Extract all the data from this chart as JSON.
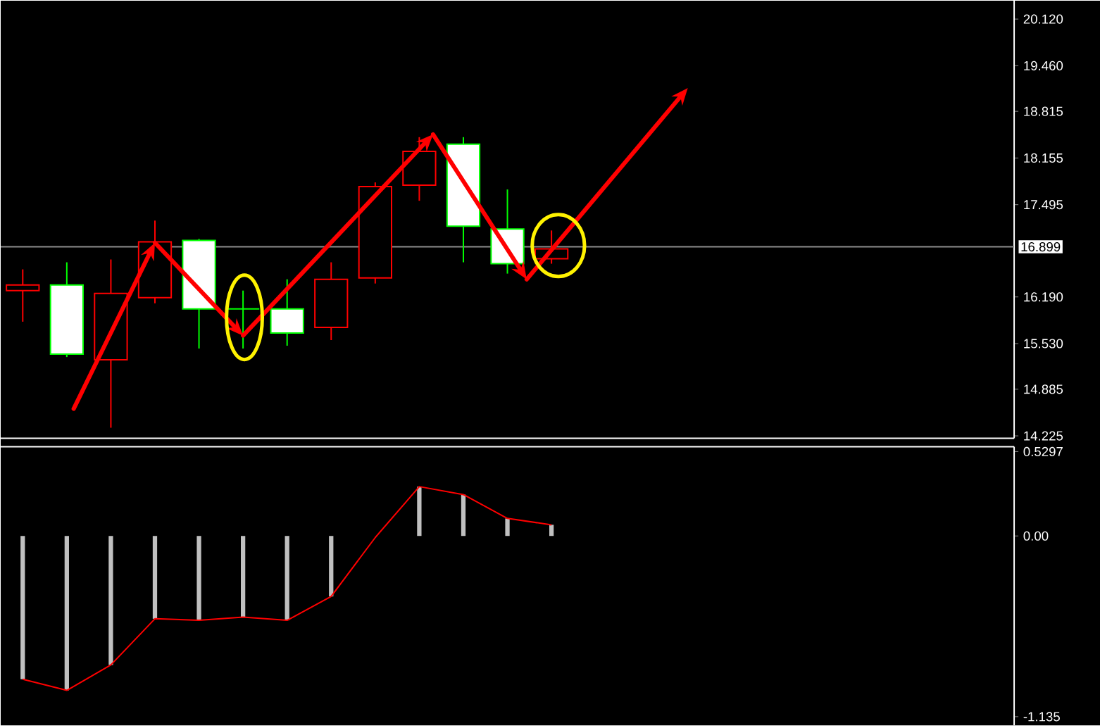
{
  "chart_data": [
    {
      "type": "candlestick",
      "categories": [
        null,
        null,
        null,
        null,
        null,
        null,
        null,
        null,
        null,
        null,
        null,
        null,
        null,
        null,
        null,
        null,
        null,
        null,
        null,
        null,
        null,
        null,
        null
      ],
      "ohlc": [
        [
          16.28,
          16.58,
          15.84,
          16.36
        ],
        [
          16.36,
          16.68,
          15.34,
          15.38
        ],
        [
          15.3,
          16.72,
          14.34,
          16.24
        ],
        [
          16.18,
          17.27,
          16.1,
          16.97
        ],
        [
          16.99,
          17.01,
          15.46,
          16.02
        ],
        [
          16.02,
          16.28,
          15.46,
          16.02
        ],
        [
          16.02,
          16.44,
          15.5,
          15.68
        ],
        [
          15.76,
          16.68,
          15.58,
          16.44
        ],
        [
          16.46,
          17.81,
          16.38,
          17.75
        ],
        [
          17.77,
          18.45,
          17.55,
          18.25
        ],
        [
          18.35,
          18.45,
          16.68,
          17.19
        ],
        [
          17.15,
          17.71,
          16.52,
          16.66
        ],
        [
          16.73,
          17.13,
          16.66,
          16.87
        ],
        null,
        null,
        null,
        null,
        null,
        null,
        null,
        null,
        null,
        null
      ],
      "colors": [
        "#ff0000",
        "#00ff00",
        "#ff0000",
        "#ff0000",
        "#00ff00",
        "#00ff00",
        "#00ff00",
        "#ff0000",
        "#ff0000",
        "#ff0000",
        "#00ff00",
        "#00ff00",
        "#ff0000",
        null,
        null,
        null,
        null,
        null,
        null,
        null,
        null,
        null,
        null
      ],
      "ylim": [
        14.19,
        20.38
      ],
      "yticks": [
        {
          "value": 20.12,
          "label": "20.120"
        },
        {
          "value": 19.46,
          "label": "19.460"
        },
        18.815,
        18.155,
        17.495,
        {
          "value": 16.19,
          "label": "16.190"
        },
        {
          "value": 15.53,
          "label": "15.530"
        },
        14.885,
        14.225
      ],
      "ref_lines": [
        {
          "axis": "y",
          "value": 16.899,
          "label": "16.899",
          "color": "#8c8c8c"
        }
      ],
      "tick_labels": "y"
    },
    {
      "type": "bar",
      "categories": [
        null,
        null,
        null,
        null,
        null,
        null,
        null,
        null,
        null,
        null,
        null,
        null,
        null,
        null,
        null,
        null,
        null,
        null,
        null,
        null,
        null,
        null,
        null
      ],
      "series": [
        {
          "type": "bar",
          "color": "#c0c0c0",
          "values": [
            -0.9,
            -0.97,
            -0.81,
            -0.52,
            -0.53,
            -0.51,
            -0.53,
            -0.38,
            null,
            0.31,
            0.26,
            0.11,
            0.07,
            null,
            null,
            null,
            null,
            null,
            null,
            null,
            null,
            null,
            null
          ]
        },
        {
          "type": "line",
          "color": "#ff0000",
          "values": [
            -0.9,
            -0.97,
            -0.81,
            -0.52,
            -0.53,
            -0.51,
            -0.53,
            -0.38,
            -0.01,
            0.31,
            0.26,
            0.11,
            0.07,
            null,
            null,
            null,
            null,
            null,
            null,
            null,
            null,
            null,
            null
          ]
        }
      ],
      "ylim": [
        -1.19,
        0.56
      ],
      "yticks": [
        0.5297,
        {
          "value": 0,
          "label": "0.00"
        },
        -1.135
      ],
      "tick_labels": "y"
    }
  ]
}
